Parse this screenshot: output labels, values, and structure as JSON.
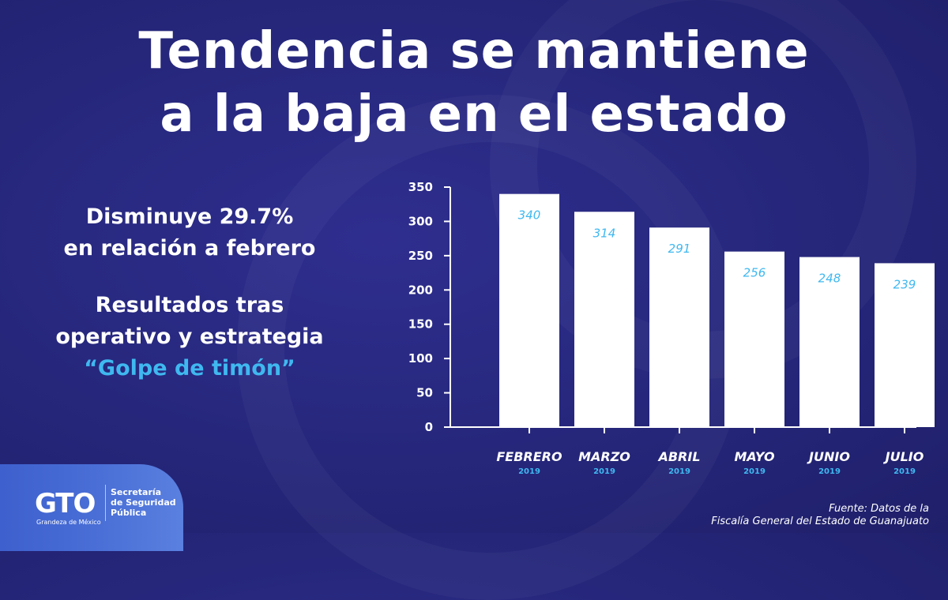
{
  "header": {
    "title_line1": "Tendencia se mantiene",
    "title_line2": "a la baja en el estado"
  },
  "side": {
    "line1": "Disminuye 29.7%",
    "line2": "en relación a febrero",
    "line3": "Resultados tras",
    "line4": "operativo y estrategia",
    "line5": "“Golpe de timón”"
  },
  "footer": {
    "logo_text": "GTO",
    "logo_subtext": "Grandeza de México",
    "agency_line1": "Secretaría",
    "agency_line2": "de Seguridad",
    "agency_line3": "Pública",
    "source_line1": "Fuente: Datos de la",
    "source_line2": "Fiscalía General del Estado de Guanajuato"
  },
  "colors": {
    "background": "#27287e",
    "bar": "#ffffff",
    "accent": "#3fb8f0"
  },
  "chart_data": {
    "type": "bar",
    "categories": [
      "FEBRERO",
      "MARZO",
      "ABRIL",
      "MAYO",
      "JUNIO",
      "JULIO"
    ],
    "category_sublabels": [
      "2019",
      "2019",
      "2019",
      "2019",
      "2019",
      "2019"
    ],
    "values": [
      340,
      314,
      291,
      256,
      248,
      239
    ],
    "data_labels": [
      "340",
      "314",
      "291",
      "256",
      "248",
      "239"
    ],
    "title": "",
    "xlabel": "",
    "ylabel": "",
    "ylim": [
      0,
      350
    ],
    "yticks": [
      0,
      50,
      100,
      150,
      200,
      250,
      300,
      350
    ],
    "grid": false,
    "legend": "none"
  }
}
